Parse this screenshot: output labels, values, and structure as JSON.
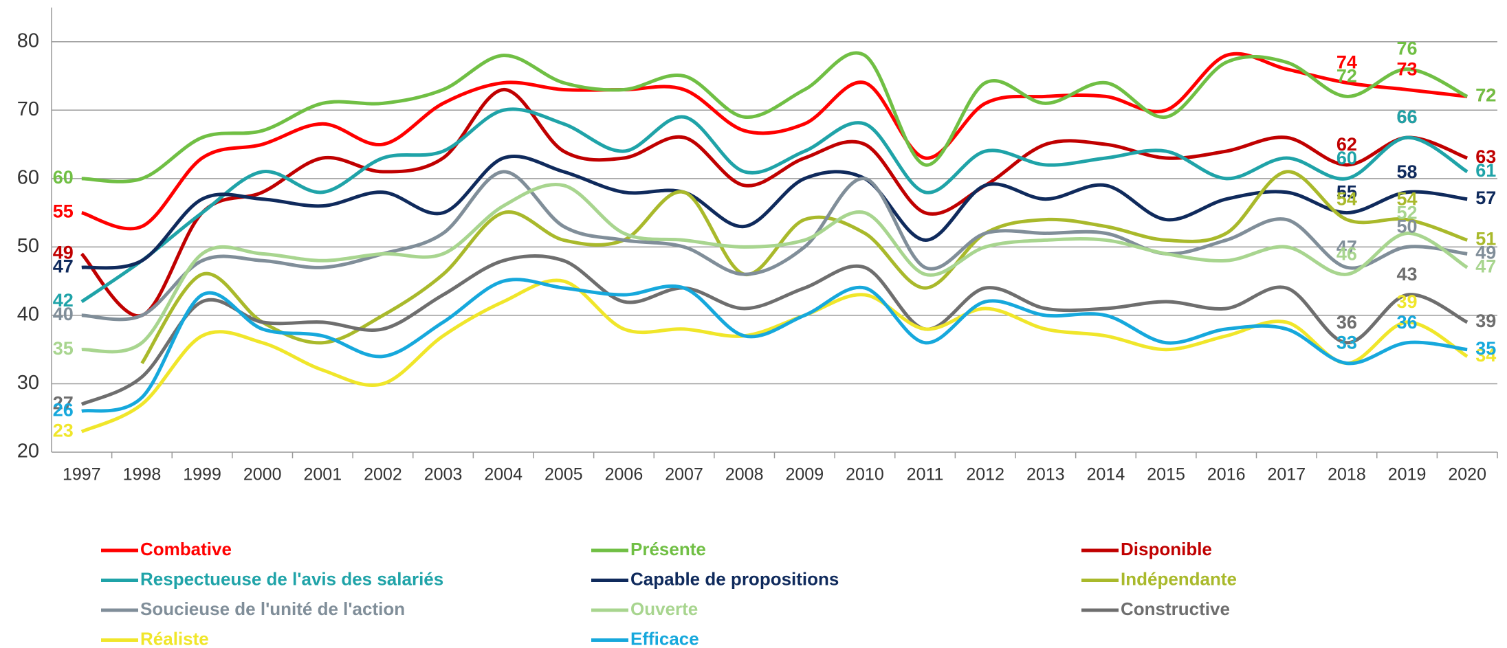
{
  "chart_data": {
    "type": "line",
    "categories": [
      "1997",
      "1998",
      "1999",
      "2000",
      "2001",
      "2002",
      "2003",
      "2004",
      "2005",
      "2006",
      "2007",
      "2008",
      "2009",
      "2010",
      "2011",
      "2012",
      "2013",
      "2014",
      "2015",
      "2016",
      "2017",
      "2018",
      "2019",
      "2020"
    ],
    "ylim": [
      20,
      85
    ],
    "yticks": [
      20,
      30,
      40,
      50,
      60,
      70,
      80
    ],
    "grid": true,
    "legend": "bottom",
    "series": [
      {
        "name": "Combative",
        "color": "#ff0000",
        "values": [
          55,
          53,
          63,
          65,
          68,
          65,
          71,
          74,
          73,
          73,
          73,
          67,
          68,
          74,
          63,
          71,
          72,
          72,
          70,
          78,
          76,
          74,
          73,
          72
        ]
      },
      {
        "name": "Présente",
        "color": "#70bf44",
        "values": [
          60,
          60,
          66,
          67,
          71,
          71,
          73,
          78,
          74,
          73,
          75,
          69,
          73,
          78,
          62,
          74,
          71,
          74,
          69,
          77,
          77,
          72,
          76,
          72
        ]
      },
      {
        "name": "Disponible",
        "color": "#c00000",
        "values": [
          49,
          40,
          55,
          58,
          63,
          61,
          63,
          73,
          64,
          63,
          66,
          59,
          63,
          65,
          55,
          59,
          65,
          65,
          63,
          64,
          66,
          62,
          66,
          63
        ]
      },
      {
        "name": "Respectueuse de l'avis des salariés",
        "color": "#1fa3a8",
        "values": [
          42,
          48,
          55,
          61,
          58,
          63,
          64,
          70,
          68,
          64,
          69,
          61,
          64,
          68,
          58,
          64,
          62,
          63,
          64,
          60,
          63,
          60,
          66,
          61
        ]
      },
      {
        "name": "Capable de propositions",
        "color": "#0f2a5c",
        "values": [
          47,
          48,
          57,
          57,
          56,
          58,
          55,
          63,
          61,
          58,
          58,
          53,
          60,
          60,
          51,
          59,
          57,
          59,
          54,
          57,
          58,
          55,
          58,
          57
        ]
      },
      {
        "name": "Indépendante",
        "color": "#a9b92b",
        "values": [
          null,
          33,
          46,
          39,
          36,
          40,
          46,
          55,
          51,
          51,
          58,
          46,
          54,
          52,
          44,
          52,
          54,
          53,
          51,
          52,
          61,
          54,
          54,
          51
        ]
      },
      {
        "name": "Soucieuse de l'unité de l'action",
        "color": "#808e99",
        "values": [
          40,
          40,
          48,
          48,
          47,
          49,
          52,
          61,
          53,
          51,
          50,
          46,
          50,
          60,
          47,
          52,
          52,
          52,
          49,
          51,
          54,
          47,
          50,
          49
        ]
      },
      {
        "name": "Ouverte",
        "color": "#a8d58f",
        "values": [
          35,
          36,
          49,
          49,
          48,
          49,
          49,
          56,
          59,
          52,
          51,
          50,
          51,
          55,
          46,
          50,
          51,
          51,
          49,
          48,
          50,
          46,
          52,
          47
        ]
      },
      {
        "name": "Constructive",
        "color": "#6e6e6e",
        "values": [
          27,
          31,
          42,
          39,
          39,
          38,
          43,
          48,
          48,
          42,
          44,
          41,
          44,
          47,
          38,
          44,
          41,
          41,
          42,
          41,
          44,
          36,
          43,
          39
        ]
      },
      {
        "name": "Réaliste",
        "color": "#f0e62a",
        "values": [
          23,
          27,
          37,
          36,
          32,
          30,
          37,
          42,
          45,
          38,
          38,
          37,
          40,
          43,
          38,
          41,
          38,
          37,
          35,
          37,
          39,
          33,
          39,
          34
        ]
      },
      {
        "name": "Efficace",
        "color": "#16a8dc",
        "values": [
          26,
          28,
          43,
          38,
          37,
          34,
          39,
          45,
          44,
          43,
          44,
          37,
          40,
          44,
          36,
          42,
          40,
          40,
          36,
          38,
          38,
          33,
          36,
          35
        ]
      }
    ]
  }
}
